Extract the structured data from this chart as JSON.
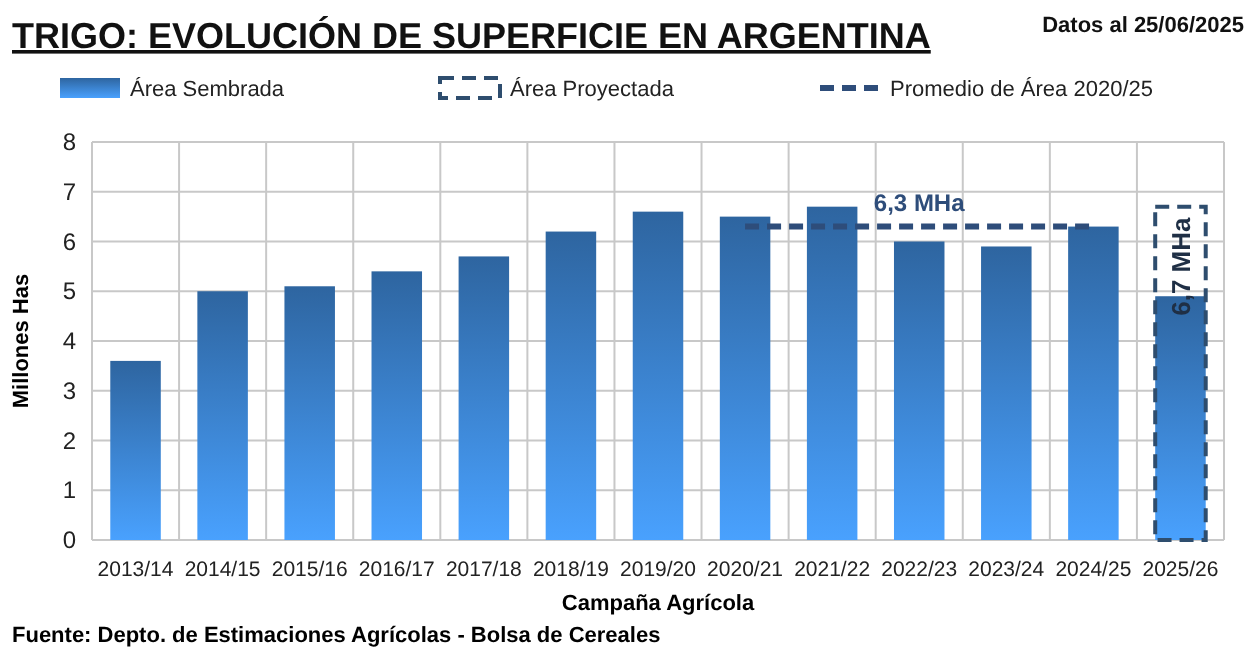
{
  "chart_data": {
    "type": "bar",
    "title": "TRIGO: EVOLUCIÓN DE SUPERFICIE EN ARGENTINA",
    "subtitle": "Datos al 25/06/2025",
    "xlabel": "Campaña Agrícola",
    "ylabel": "Millones Has",
    "categories": [
      "2013/14",
      "2014/15",
      "2015/16",
      "2016/17",
      "2017/18",
      "2018/19",
      "2019/20",
      "2020/21",
      "2021/22",
      "2022/23",
      "2023/24",
      "2024/25",
      "2025/26"
    ],
    "series": [
      {
        "name": "Área Sembrada",
        "color": "#2e65a0",
        "values": [
          3.6,
          5.0,
          5.1,
          5.4,
          5.7,
          6.2,
          6.6,
          6.5,
          6.7,
          6.0,
          5.9,
          6.3,
          4.9
        ]
      },
      {
        "name": "Área Proyectada",
        "color": "#2e4d6e",
        "line_style": "dashed",
        "values": [
          null,
          null,
          null,
          null,
          null,
          null,
          null,
          null,
          null,
          null,
          null,
          null,
          6.7
        ],
        "value_labels": [
          null,
          null,
          null,
          null,
          null,
          null,
          null,
          null,
          null,
          null,
          null,
          null,
          "6,7 MHa"
        ]
      },
      {
        "name": "Promedio de Área 2020/25",
        "type": "line",
        "color": "#2e4d7a",
        "line_style": "dashed",
        "values": [
          null,
          null,
          null,
          null,
          null,
          null,
          null,
          6.3,
          6.3,
          6.3,
          6.3,
          6.3,
          null
        ],
        "value_labels": [
          null,
          null,
          null,
          null,
          null,
          null,
          null,
          null,
          null,
          "6,3 MHa",
          null,
          null,
          null
        ]
      }
    ],
    "ylim": [
      0,
      8
    ],
    "yticks": [
      0,
      1,
      2,
      3,
      4,
      5,
      6,
      7,
      8
    ],
    "grid": true,
    "legend": "top",
    "annotations": [
      "Fuente: Depto. de Estimaciones Agrícolas - Bolsa de Cereales"
    ]
  }
}
